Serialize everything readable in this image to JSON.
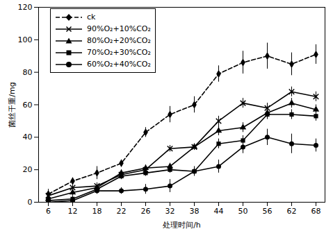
{
  "chart_data": {
    "type": "line",
    "x_label": "处理时间/h",
    "y_label": "菌丝干重/mg",
    "categories": [
      6,
      12,
      18,
      22,
      26,
      32,
      38,
      44,
      50,
      56,
      62,
      68
    ],
    "ylim": [
      0,
      120
    ],
    "yticks": [
      0,
      20,
      40,
      60,
      80,
      100,
      120
    ],
    "grid": false,
    "legend": "top-left",
    "series": [
      {
        "name": "ck",
        "color": "#000000",
        "marker": "diamond",
        "line_style": "dashed",
        "values": [
          5,
          13,
          18,
          24,
          43,
          54,
          60,
          79,
          86,
          90,
          85,
          91
        ],
        "errors": [
          3,
          2,
          4,
          2,
          3,
          5,
          5,
          5,
          7,
          8,
          7,
          6
        ]
      },
      {
        "name": "90%O₂+10%CO₂",
        "color": "#000000",
        "marker": "times",
        "line_style": "solid",
        "values": [
          4,
          9,
          10,
          17,
          20,
          33,
          34,
          50,
          61,
          58,
          68,
          65
        ],
        "errors": [
          2,
          2,
          2,
          2,
          2,
          2,
          2,
          3,
          3,
          3,
          3,
          3
        ]
      },
      {
        "name": "80%O₂+20%CO₂",
        "color": "#000000",
        "marker": "triangle",
        "line_style": "solid",
        "values": [
          2,
          6,
          9,
          18,
          21,
          22,
          34,
          44,
          46,
          55,
          61,
          57
        ],
        "errors": [
          2,
          2,
          2,
          2,
          2,
          2,
          2,
          3,
          3,
          3,
          3,
          3
        ]
      },
      {
        "name": "70%O₂+30%CO₂",
        "color": "#000000",
        "marker": "square",
        "line_style": "solid",
        "values": [
          1,
          2,
          8,
          16,
          18,
          20,
          19,
          36,
          38,
          54,
          54,
          53
        ],
        "errors": [
          2,
          2,
          2,
          2,
          2,
          2,
          2,
          3,
          3,
          3,
          3,
          3
        ]
      },
      {
        "name": "60%O₂+40%CO₂",
        "color": "#000000",
        "marker": "circle",
        "line_style": "solid",
        "values": [
          0,
          1,
          7,
          7,
          8,
          10,
          19,
          22,
          34,
          40,
          36,
          35
        ],
        "errors": [
          2,
          1,
          2,
          2,
          3,
          4,
          3,
          4,
          4,
          5,
          6,
          4
        ]
      }
    ]
  }
}
